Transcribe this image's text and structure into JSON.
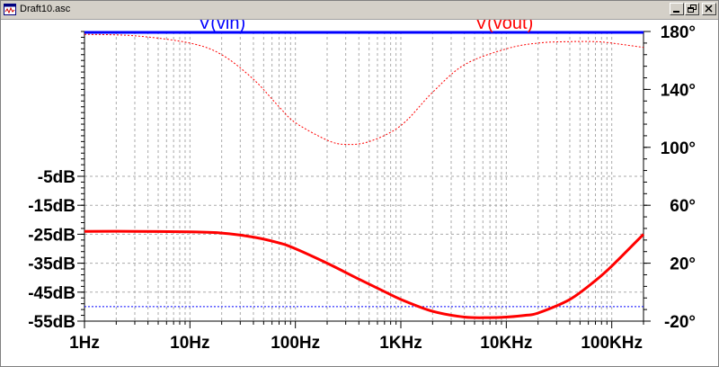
{
  "window": {
    "title": "Draft10.asc",
    "controls": [
      "minimize",
      "restore",
      "close"
    ]
  },
  "colors": {
    "vin": "#0000ff",
    "vout": "#ff0000",
    "grid": "#aaaaaa",
    "axis": "#000000",
    "background": "#ffffff"
  },
  "chart_data": {
    "type": "line",
    "xscale": "log",
    "xlim": [
      1,
      200000
    ],
    "ylim": [
      -55,
      45
    ],
    "y2lim": [
      -20,
      180
    ],
    "ylabel_unit": "dB",
    "x_ticks": [
      {
        "value": 1,
        "label": "1Hz"
      },
      {
        "value": 10,
        "label": "10Hz"
      },
      {
        "value": 100,
        "label": "100Hz"
      },
      {
        "value": 1000,
        "label": "1KHz"
      },
      {
        "value": 10000,
        "label": "10KHz"
      },
      {
        "value": 100000,
        "label": "100KHz"
      }
    ],
    "y_ticks": [
      {
        "value": -5,
        "label": "-5dB"
      },
      {
        "value": -15,
        "label": "-15dB"
      },
      {
        "value": -25,
        "label": "-25dB"
      },
      {
        "value": -35,
        "label": "-35dB"
      },
      {
        "value": -45,
        "label": "-45dB"
      },
      {
        "value": -55,
        "label": "-55dB"
      }
    ],
    "y2_ticks": [
      {
        "value": 180,
        "label": "180°"
      },
      {
        "value": 140,
        "label": "140°"
      },
      {
        "value": 100,
        "label": "100°"
      },
      {
        "value": 60,
        "label": "60°"
      },
      {
        "value": 20,
        "label": "20°"
      },
      {
        "value": -20,
        "label": "-20°"
      }
    ],
    "series": [
      {
        "name": "V(vin)",
        "color": "#0000ff",
        "style": "dotted",
        "axis": "left",
        "x": [
          1,
          200000
        ],
        "y": [
          -50,
          -50
        ]
      },
      {
        "name": "V(vout)",
        "color": "#ff0000",
        "style": "solid",
        "axis": "left",
        "x": [
          1,
          3,
          10,
          20,
          40,
          70,
          100,
          200,
          400,
          700,
          1000,
          2000,
          4000,
          7000,
          10000,
          15000,
          20000,
          40000,
          70000,
          100000,
          200000
        ],
        "y": [
          -24,
          -24,
          -24.2,
          -24.6,
          -26,
          -28,
          -30,
          -35,
          -40.5,
          -44.8,
          -47.5,
          -51.6,
          -53.6,
          -53.8,
          -53.6,
          -53,
          -52.2,
          -47.5,
          -41,
          -36,
          -25
        ]
      },
      {
        "name": "V(vout) phase",
        "color": "#ff0000",
        "style": "dotted",
        "axis": "right",
        "x": [
          1,
          3,
          10,
          20,
          40,
          70,
          100,
          200,
          300,
          500,
          1000,
          2000,
          4000,
          10000,
          20000,
          40000,
          70000,
          100000,
          200000
        ],
        "y": [
          178,
          177,
          172,
          164,
          147,
          128,
          117,
          105,
          102,
          104,
          115,
          138,
          157,
          168,
          172,
          173,
          173,
          172,
          169
        ]
      }
    ]
  }
}
